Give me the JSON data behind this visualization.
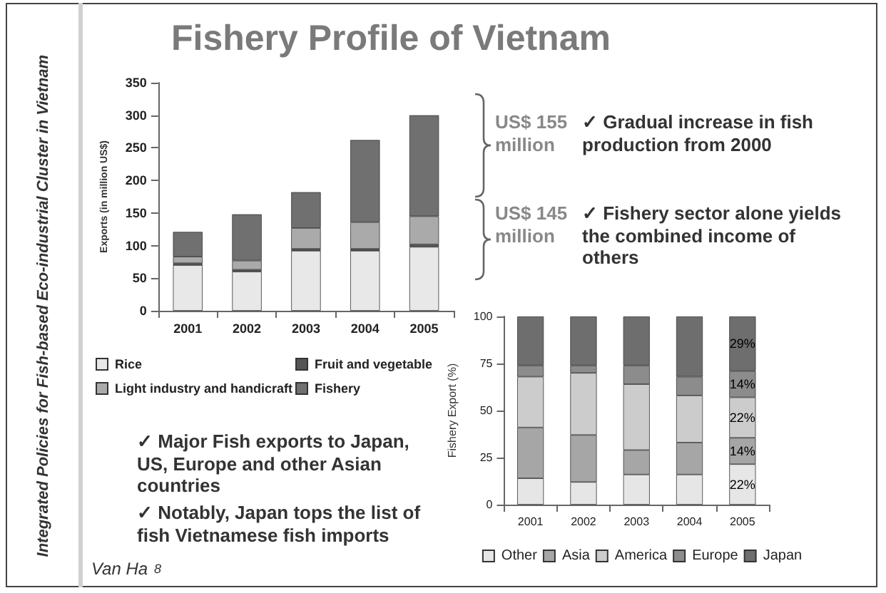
{
  "chart_data": [
    {
      "type": "bar",
      "title": "Fishery Profile of Vietnam",
      "ylabel": "Exports (in million US$)",
      "categories": [
        "2001",
        "2002",
        "2003",
        "2004",
        "2005"
      ],
      "stacked": true,
      "series": [
        {
          "name": "Rice",
          "color": "#e8e8e8",
          "values": [
            70,
            60,
            92,
            92,
            98
          ]
        },
        {
          "name": "Fruit and vegetable",
          "color": "#555555",
          "values": [
            3,
            3,
            3,
            3,
            4
          ]
        },
        {
          "name": "Light industry and handicraft",
          "color": "#aaaaaa",
          "values": [
            10,
            14,
            32,
            41,
            43
          ]
        },
        {
          "name": "Fishery",
          "color": "#707070",
          "values": [
            38,
            71,
            55,
            126,
            155
          ]
        }
      ],
      "ylim": [
        0,
        350
      ],
      "yticks": [
        0,
        50,
        100,
        150,
        200,
        250,
        300,
        350
      ],
      "legend": "bottom",
      "annotations": [
        "US$ 155 million",
        "US$ 145 million",
        "✓ Gradual increase in fish production from 2000",
        "✓ Fishery sector alone yields the combined income of others",
        "✓ Major Fish exports to Japan, US, Europe and other Asian countries",
        "✓ Notably, Japan tops the list of fish Vietnamese fish imports",
        "Integrated Policies for Fish-based Eco-industrial Cluster in Vietnam",
        "Van Ha",
        "8"
      ]
    },
    {
      "type": "bar",
      "ylabel": "Fishery Export (%)",
      "categories": [
        "2001",
        "2002",
        "2003",
        "2004",
        "2005"
      ],
      "stacked": true,
      "series": [
        {
          "name": "Other",
          "color": "#e6e6e6",
          "values": [
            14,
            12,
            16,
            16,
            21.5
          ],
          "value_labels": [
            null,
            null,
            null,
            null,
            "22%"
          ]
        },
        {
          "name": "Asia",
          "color": "#a6a6a6",
          "values": [
            27,
            25,
            13,
            17,
            14
          ],
          "value_labels": [
            null,
            null,
            null,
            null,
            "14%"
          ]
        },
        {
          "name": "America",
          "color": "#cccccc",
          "values": [
            27,
            33,
            35,
            25,
            21.5
          ],
          "value_labels": [
            null,
            null,
            null,
            null,
            "22%"
          ]
        },
        {
          "name": "Europe",
          "color": "#8c8c8c",
          "values": [
            6,
            4,
            10,
            10,
            14
          ],
          "value_labels": [
            null,
            null,
            null,
            null,
            "14%"
          ]
        },
        {
          "name": "Japan",
          "color": "#6e6e6e",
          "values": [
            26,
            26,
            26,
            32,
            29
          ],
          "value_labels": [
            null,
            null,
            null,
            null,
            "29%"
          ]
        }
      ],
      "ylim": [
        0,
        100
      ],
      "yticks": [
        0,
        25,
        50,
        75,
        100
      ],
      "legend": "bottom"
    }
  ]
}
